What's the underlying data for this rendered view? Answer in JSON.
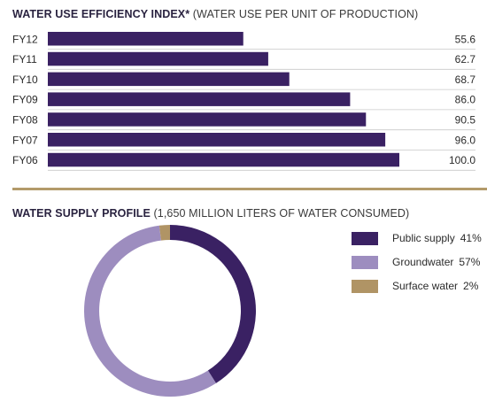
{
  "bar_section": {
    "title_bold": "WATER USE EFFICIENCY INDEX*",
    "title_rest": " (WATER USE PER UNIT OF PRODUCTION)"
  },
  "pie_section": {
    "title_bold": "WATER SUPPLY PROFILE",
    "title_rest": " (1,650 MILLION LITERS OF WATER CONSUMED)"
  },
  "chart_data": [
    {
      "type": "bar",
      "orientation": "horizontal",
      "title": "WATER USE EFFICIENCY INDEX* (WATER USE PER UNIT OF PRODUCTION)",
      "categories": [
        "FY12",
        "FY11",
        "FY10",
        "FY09",
        "FY08",
        "FY07",
        "FY06"
      ],
      "values": [
        55.6,
        62.7,
        68.7,
        86.0,
        90.5,
        96.0,
        100.0
      ],
      "value_labels": [
        "55.6",
        "62.7",
        "68.7",
        "86.0",
        "90.5",
        "96.0",
        "100.0"
      ],
      "xlim": [
        0,
        100
      ],
      "grid": false,
      "color": "#3a2163"
    },
    {
      "type": "pie",
      "style": "donut",
      "title": "WATER SUPPLY PROFILE (1,650 MILLION LITERS OF WATER CONSUMED)",
      "categories": [
        "Public supply",
        "Groundwater",
        "Surface water"
      ],
      "values": [
        41,
        57,
        2
      ],
      "value_labels": [
        "41%",
        "57%",
        "2%"
      ],
      "colors": [
        "#3a2163",
        "#9d8dbf",
        "#b09465"
      ],
      "legend_position": "right"
    }
  ]
}
